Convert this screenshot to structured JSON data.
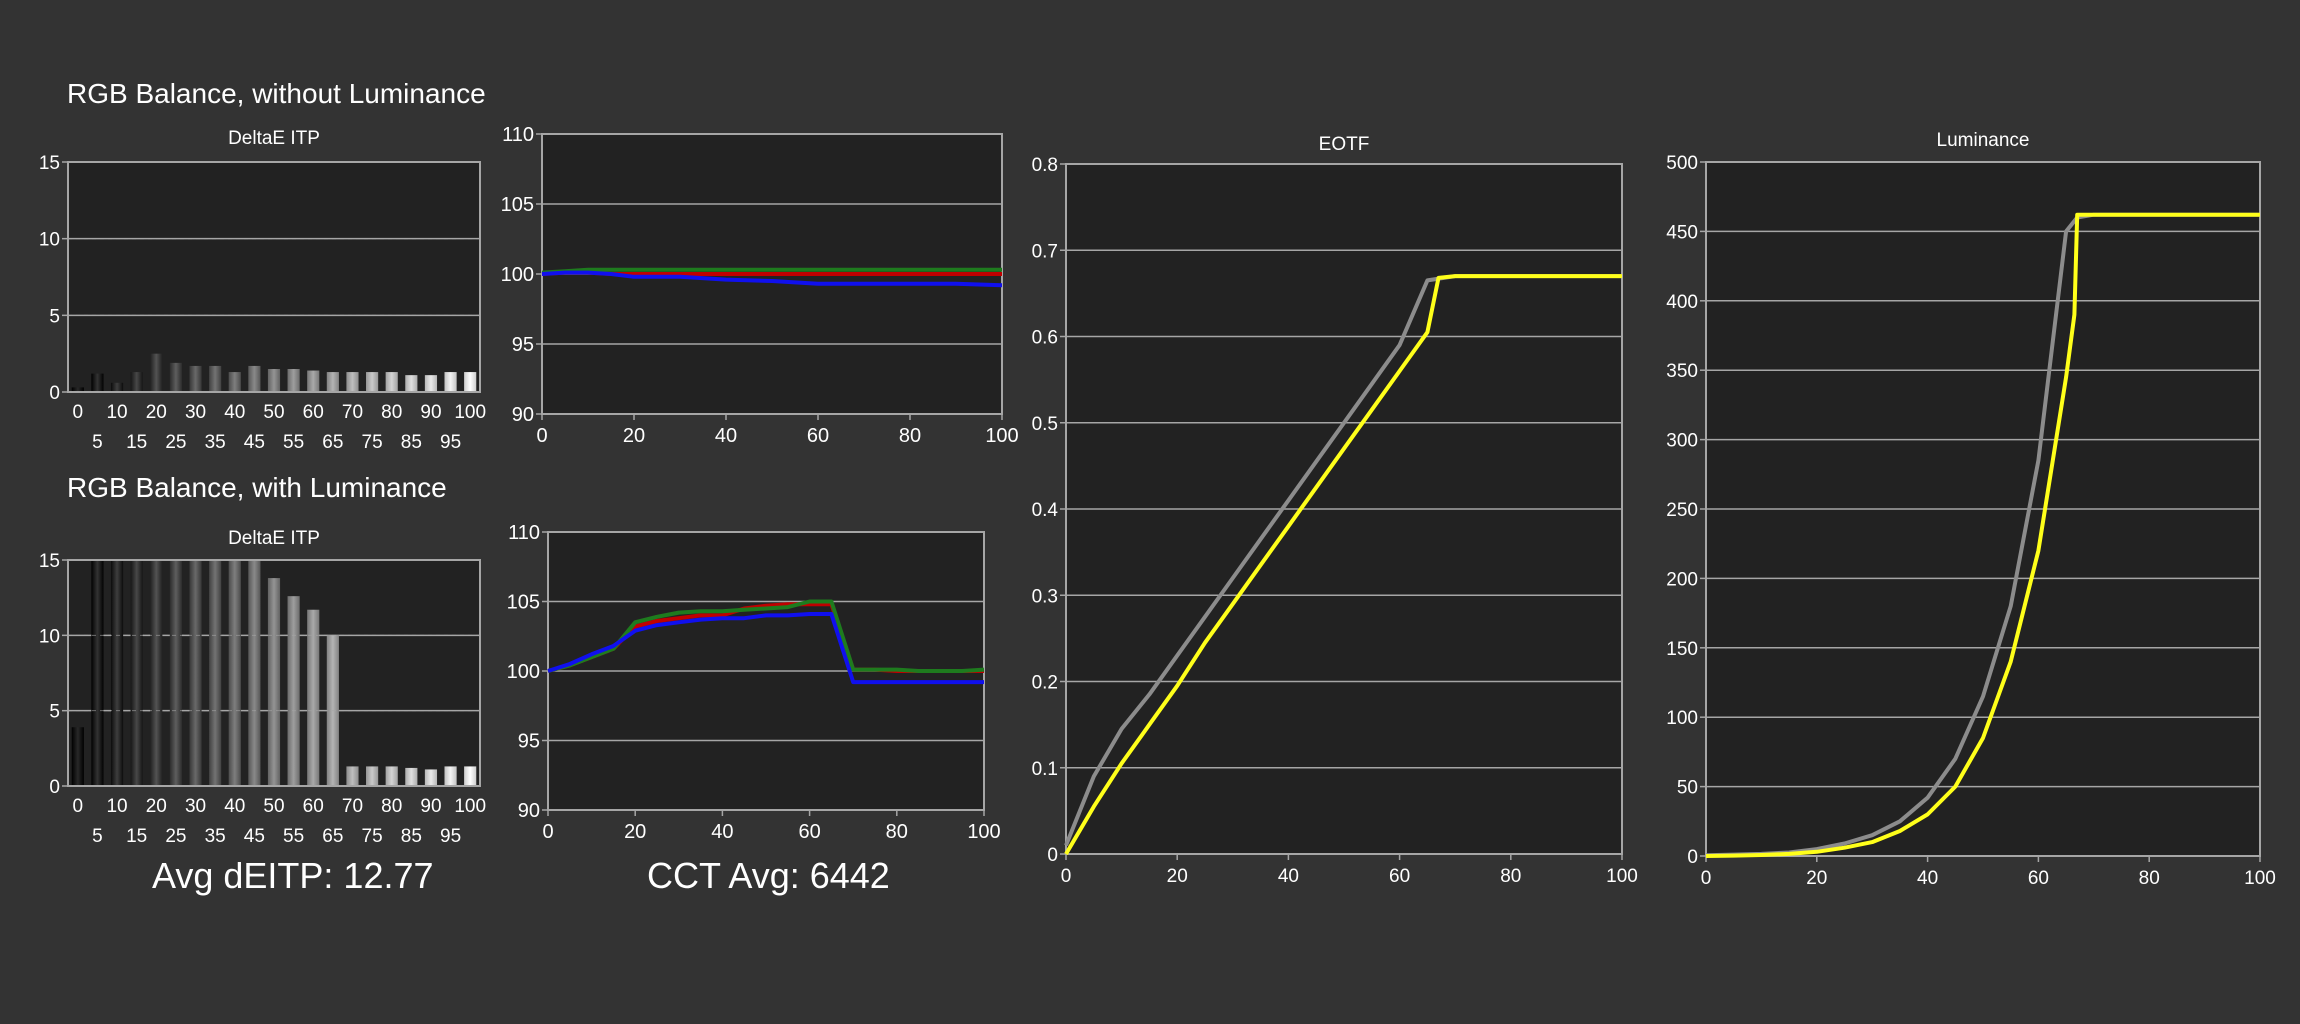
{
  "sections": {
    "without_luminance_title": "RGB Balance, without Luminance",
    "with_luminance_title": "RGB Balance, with Luminance"
  },
  "summary": {
    "avg_deitp": "Avg dEITP: 12.77",
    "cct_avg": "CCT Avg: 6442"
  },
  "colors": {
    "background": "#333333",
    "plot_background": "#222222",
    "grid": "#a6a6a6",
    "red": "#c00000",
    "green": "#1e7b1e",
    "blue": "#1010ee",
    "target": "#8c8c8c",
    "measured": "#ffff1a"
  },
  "chart_data": [
    {
      "id": "deitp_without_luminance",
      "type": "bar",
      "title": "DeltaE ITP",
      "categories": [
        "0",
        "5",
        "10",
        "15",
        "20",
        "25",
        "30",
        "35",
        "40",
        "45",
        "50",
        "55",
        "60",
        "65",
        "70",
        "75",
        "80",
        "85",
        "90",
        "95",
        "100"
      ],
      "values": [
        0.3,
        1.2,
        0.6,
        1.3,
        2.5,
        1.9,
        1.7,
        1.7,
        1.3,
        1.7,
        1.5,
        1.5,
        1.4,
        1.3,
        1.3,
        1.3,
        1.3,
        1.1,
        1.1,
        1.3,
        1.3
      ],
      "ylim": [
        0,
        15
      ],
      "yticks": [
        0,
        5,
        10,
        15
      ],
      "grid": true
    },
    {
      "id": "rgb_without_luminance",
      "type": "line",
      "ylim": [
        90,
        110
      ],
      "xlim": [
        0,
        100
      ],
      "yticks": [
        90,
        95,
        100,
        105,
        110
      ],
      "xticks": [
        0,
        20,
        40,
        60,
        80,
        100
      ],
      "grid": true,
      "series": [
        {
          "color": "red",
          "x": [
            0,
            5,
            10,
            15,
            20,
            30,
            40,
            50,
            60,
            70,
            80,
            90,
            100
          ],
          "y": [
            100,
            100.1,
            100.1,
            100,
            100,
            100,
            100,
            100,
            100,
            100,
            100,
            100,
            100
          ]
        },
        {
          "color": "green",
          "x": [
            0,
            5,
            10,
            15,
            20,
            30,
            40,
            50,
            60,
            70,
            80,
            90,
            100
          ],
          "y": [
            100.1,
            100.2,
            100.3,
            100.3,
            100.3,
            100.3,
            100.3,
            100.3,
            100.3,
            100.3,
            100.3,
            100.3,
            100.3
          ]
        },
        {
          "color": "blue",
          "x": [
            0,
            5,
            10,
            15,
            20,
            30,
            40,
            50,
            60,
            70,
            80,
            90,
            100
          ],
          "y": [
            100,
            100.1,
            100.1,
            100,
            99.8,
            99.8,
            99.6,
            99.5,
            99.3,
            99.3,
            99.3,
            99.3,
            99.2
          ]
        }
      ]
    },
    {
      "id": "deitp_with_luminance",
      "type": "bar",
      "title": "DeltaE ITP",
      "categories": [
        "0",
        "5",
        "10",
        "15",
        "20",
        "25",
        "30",
        "35",
        "40",
        "45",
        "50",
        "55",
        "60",
        "65",
        "70",
        "75",
        "80",
        "85",
        "90",
        "95",
        "100"
      ],
      "values": [
        3.9,
        15,
        15,
        15,
        15,
        15,
        15,
        15,
        15,
        15,
        13.8,
        12.6,
        11.7,
        10,
        1.3,
        1.3,
        1.3,
        1.2,
        1.1,
        1.3,
        1.3
      ],
      "ylim": [
        0,
        15
      ],
      "yticks": [
        0,
        5,
        10,
        15
      ],
      "grid": true
    },
    {
      "id": "rgb_with_luminance",
      "type": "line",
      "ylim": [
        90,
        110
      ],
      "xlim": [
        0,
        100
      ],
      "yticks": [
        90,
        95,
        100,
        105,
        110
      ],
      "xticks": [
        0,
        20,
        40,
        60,
        80,
        100
      ],
      "grid": true,
      "series": [
        {
          "color": "red",
          "x": [
            0,
            5,
            10,
            15,
            20,
            25,
            30,
            35,
            40,
            45,
            50,
            55,
            60,
            65,
            70,
            75,
            80,
            85,
            90,
            95,
            100
          ],
          "y": [
            100,
            100.4,
            101,
            101.6,
            103.2,
            103.6,
            103.8,
            104,
            104,
            104.5,
            104.7,
            104.8,
            104.8,
            104.8,
            100.1,
            100.1,
            100,
            100,
            100,
            100,
            100
          ]
        },
        {
          "color": "green",
          "x": [
            0,
            5,
            10,
            15,
            20,
            25,
            30,
            35,
            40,
            45,
            50,
            55,
            60,
            65,
            70,
            75,
            80,
            85,
            90,
            95,
            100
          ],
          "y": [
            100,
            100.4,
            101,
            101.6,
            103.5,
            103.9,
            104.2,
            104.3,
            104.3,
            104.4,
            104.5,
            104.6,
            105,
            105,
            100.1,
            100.1,
            100.1,
            100,
            100,
            100,
            100.1
          ]
        },
        {
          "color": "blue",
          "x": [
            0,
            5,
            10,
            15,
            20,
            25,
            30,
            35,
            40,
            45,
            50,
            55,
            60,
            65,
            70,
            75,
            80,
            85,
            90,
            95,
            100
          ],
          "y": [
            100,
            100.5,
            101.2,
            101.8,
            102.9,
            103.3,
            103.5,
            103.7,
            103.8,
            103.8,
            104,
            104,
            104.1,
            104.1,
            99.2,
            99.2,
            99.2,
            99.2,
            99.2,
            99.2,
            99.2
          ]
        }
      ]
    },
    {
      "id": "eotf",
      "type": "line",
      "title": "EOTF",
      "ylim": [
        0,
        0.8
      ],
      "xlim": [
        0,
        100
      ],
      "yticks": [
        0,
        0.1,
        0.2,
        0.3,
        0.4,
        0.5,
        0.6,
        0.7,
        0.8
      ],
      "xticks": [
        0,
        20,
        40,
        60,
        80,
        100
      ],
      "grid": true,
      "series": [
        {
          "color": "target",
          "x": [
            0,
            5,
            10,
            15,
            20,
            25,
            30,
            35,
            40,
            45,
            50,
            55,
            60,
            65,
            70,
            75,
            80,
            85,
            90,
            95,
            100
          ],
          "y": [
            0.01,
            0.09,
            0.145,
            0.185,
            0.23,
            0.275,
            0.32,
            0.365,
            0.41,
            0.455,
            0.5,
            0.545,
            0.59,
            0.665,
            0.67,
            0.67,
            0.67,
            0.67,
            0.67,
            0.67,
            0.67
          ]
        },
        {
          "color": "measured",
          "x": [
            0,
            5,
            10,
            15,
            20,
            25,
            30,
            35,
            40,
            45,
            50,
            55,
            60,
            65,
            67,
            70,
            75,
            80,
            85,
            90,
            95,
            100
          ],
          "y": [
            0,
            0.055,
            0.105,
            0.15,
            0.195,
            0.245,
            0.29,
            0.335,
            0.38,
            0.425,
            0.47,
            0.515,
            0.56,
            0.605,
            0.668,
            0.67,
            0.67,
            0.67,
            0.67,
            0.67,
            0.67,
            0.67
          ]
        }
      ]
    },
    {
      "id": "luminance",
      "type": "line",
      "title": "Luminance",
      "ylim": [
        0,
        500
      ],
      "xlim": [
        0,
        100
      ],
      "yticks": [
        0,
        50,
        100,
        150,
        200,
        250,
        300,
        350,
        400,
        450,
        500
      ],
      "xticks": [
        0,
        20,
        40,
        60,
        80,
        100
      ],
      "grid": true,
      "series": [
        {
          "color": "target",
          "x": [
            0,
            5,
            10,
            15,
            20,
            25,
            30,
            35,
            40,
            45,
            50,
            55,
            60,
            65,
            67,
            70,
            75,
            80,
            85,
            90,
            95,
            100
          ],
          "y": [
            0.5,
            1,
            1.5,
            2.5,
            5,
            9,
            15,
            25,
            42,
            70,
            115,
            180,
            285,
            450,
            460,
            462,
            462,
            462,
            462,
            462,
            462,
            462
          ]
        },
        {
          "color": "measured",
          "x": [
            0,
            5,
            10,
            15,
            20,
            25,
            30,
            35,
            40,
            45,
            50,
            55,
            60,
            65,
            66.5,
            67,
            70,
            75,
            80,
            85,
            90,
            95,
            100
          ],
          "y": [
            0,
            0.3,
            0.7,
            1.5,
            3,
            6,
            10,
            18,
            30,
            50,
            85,
            140,
            220,
            345,
            390,
            462,
            462,
            462,
            462,
            462,
            462,
            462,
            462
          ]
        }
      ]
    }
  ]
}
